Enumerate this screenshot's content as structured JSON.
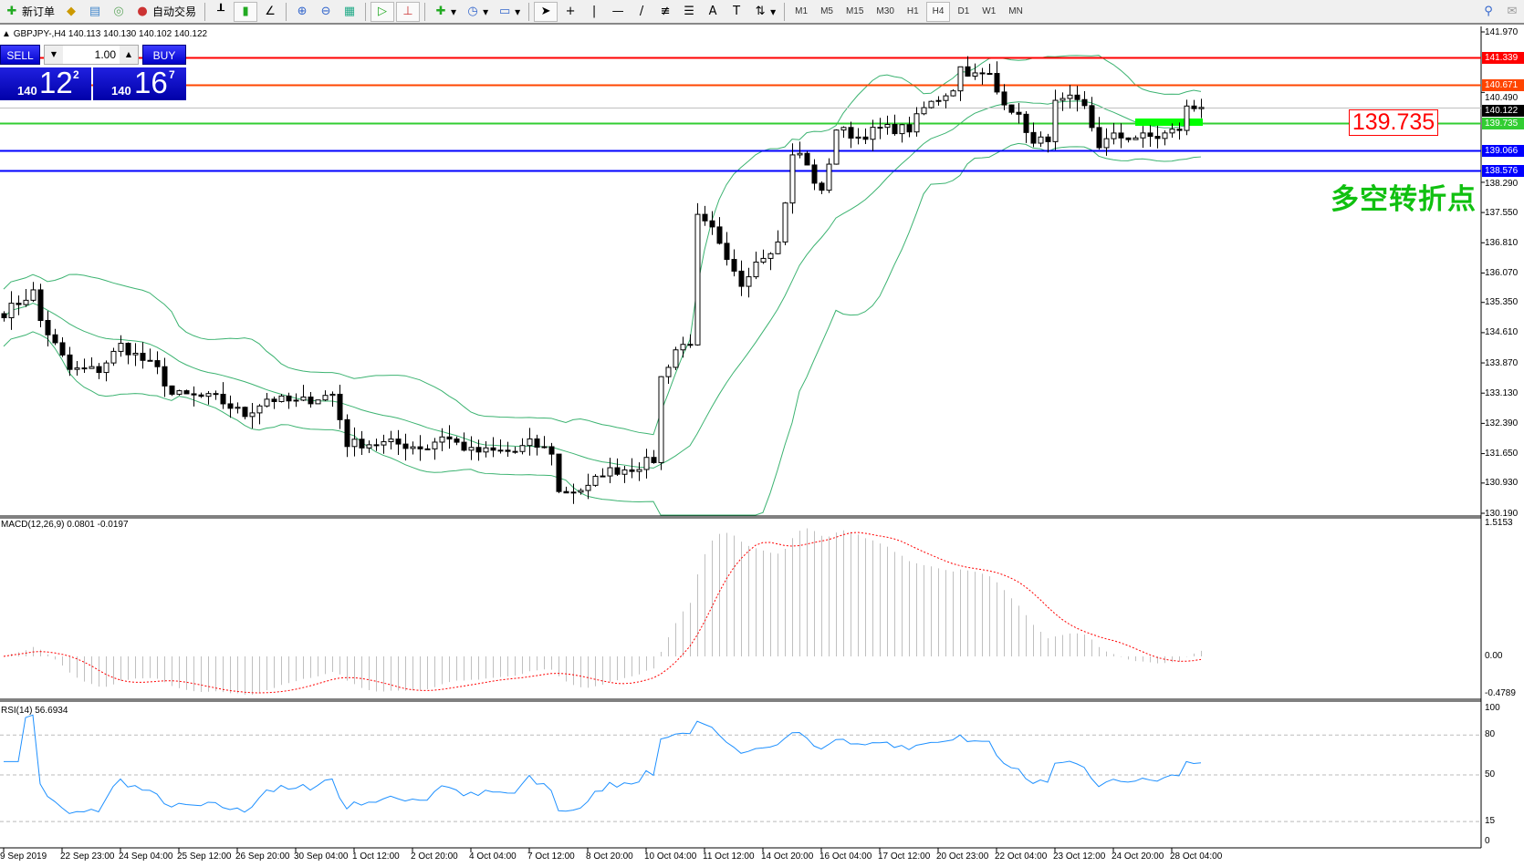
{
  "toolbar": {
    "new_order": "新订单",
    "auto_trading": "自动交易",
    "timeframes": [
      "M1",
      "M5",
      "M15",
      "M30",
      "H1",
      "H4",
      "D1",
      "W1",
      "MN"
    ],
    "active_timeframe": "H4"
  },
  "chart": {
    "header": "GBPJPY-,H4  140.113 140.130 140.102 140.122",
    "symbol": "GBPJPY-",
    "timeframe": "H4",
    "ohlc": {
      "open": 140.113,
      "high": 140.13,
      "low": 140.102,
      "close": 140.122
    }
  },
  "one_click": {
    "sell_label": "SELL",
    "buy_label": "BUY",
    "lot": "1.00",
    "sell_prefix": "140",
    "sell_big": "12",
    "sell_pip": "2",
    "buy_prefix": "140",
    "buy_big": "16",
    "buy_pip": "7"
  },
  "price_axis": [
    "141.970",
    "140.490",
    "138.290",
    "137.550",
    "136.810",
    "136.070",
    "135.350",
    "134.610",
    "133.870",
    "133.130",
    "132.390",
    "131.650",
    "130.930",
    "130.190"
  ],
  "price_axis_range": [
    130.19,
    141.97
  ],
  "levels": [
    {
      "price": "141.339",
      "color": "#ff0000"
    },
    {
      "price": "140.671",
      "color": "#ff4500"
    },
    {
      "price": "140.122",
      "color": "#000000",
      "current": true
    },
    {
      "price": "139.735",
      "color": "#32cd32"
    },
    {
      "price": "139.066",
      "color": "#0000ff"
    },
    {
      "price": "138.576",
      "color": "#0000ff"
    }
  ],
  "annotation_price": "139.735",
  "annotation_text": "多空转折点",
  "macd": {
    "label": "MACD(12,26,9) 0.0801 -0.0197",
    "axis": [
      "1.5153",
      "0.00",
      "-0.4789"
    ],
    "range": [
      -0.4789,
      1.5153
    ]
  },
  "rsi": {
    "label": "RSI(14) 56.6934",
    "axis": [
      "100",
      "80",
      "50",
      "15",
      "0"
    ],
    "levels": [
      80,
      50,
      15
    ]
  },
  "time_axis": [
    "9 Sep 2019",
    "22 Sep 23:00",
    "24 Sep 04:00",
    "25 Sep 12:00",
    "26 Sep 20:00",
    "30 Sep 04:00",
    "1 Oct 12:00",
    "2 Oct 20:00",
    "4 Oct 04:00",
    "7 Oct 12:00",
    "8 Oct 20:00",
    "10 Oct 04:00",
    "11 Oct 12:00",
    "14 Oct 20:00",
    "16 Oct 04:00",
    "17 Oct 12:00",
    "20 Oct 23:00",
    "22 Oct 04:00",
    "23 Oct 12:00",
    "24 Oct 20:00",
    "28 Oct 04:00"
  ],
  "chart_data": {
    "type": "candlestick",
    "close_path": [
      [
        0,
        135.1
      ],
      [
        4,
        135.6
      ],
      [
        5,
        134.9
      ],
      [
        9,
        133.7
      ],
      [
        13,
        133.7
      ],
      [
        16,
        134.3
      ],
      [
        21,
        133.7
      ],
      [
        23,
        133.1
      ],
      [
        29,
        133.0
      ],
      [
        33,
        132.6
      ],
      [
        36,
        133.0
      ],
      [
        40,
        132.9
      ],
      [
        45,
        133.1
      ],
      [
        47,
        131.9
      ],
      [
        53,
        131.9
      ],
      [
        58,
        131.8
      ],
      [
        60,
        132.1
      ],
      [
        64,
        131.7
      ],
      [
        70,
        131.7
      ],
      [
        72,
        131.9
      ],
      [
        75,
        131.7
      ],
      [
        76,
        130.7
      ],
      [
        80,
        130.8
      ],
      [
        82,
        131.2
      ],
      [
        86,
        131.3
      ],
      [
        89,
        131.5
      ],
      [
        90,
        133.5
      ],
      [
        92,
        134.2
      ],
      [
        94,
        134.4
      ],
      [
        95,
        137.4
      ],
      [
        97,
        137.1
      ],
      [
        99,
        136.3
      ],
      [
        101,
        135.8
      ],
      [
        103,
        136.4
      ],
      [
        106,
        136.8
      ],
      [
        108,
        138.9
      ],
      [
        109,
        139.0
      ],
      [
        112,
        138.0
      ],
      [
        114,
        139.6
      ],
      [
        117,
        139.4
      ],
      [
        120,
        139.6
      ],
      [
        124,
        139.6
      ],
      [
        126,
        140.1
      ],
      [
        130,
        140.6
      ],
      [
        131,
        141.1
      ],
      [
        133,
        140.9
      ],
      [
        135,
        140.9
      ],
      [
        136,
        140.5
      ],
      [
        138,
        140.1
      ],
      [
        140,
        139.6
      ],
      [
        141,
        139.2
      ],
      [
        143,
        139.4
      ],
      [
        144,
        140.2
      ],
      [
        146,
        140.3
      ],
      [
        148,
        140.1
      ],
      [
        150,
        139.2
      ],
      [
        152,
        139.4
      ],
      [
        156,
        139.4
      ],
      [
        158,
        139.4
      ],
      [
        161,
        139.6
      ],
      [
        162,
        140.1
      ],
      [
        164,
        140.122
      ]
    ],
    "indicators": [
      "Bollinger Bands(20,2)",
      "MACD(12,26,9)",
      "RSI(14)"
    ]
  },
  "colors": {
    "bands": "#3cb371",
    "macd_hist": "#c0c0c0",
    "macd_signal": "#ff0000",
    "rsi": "#1e90ff",
    "annotation": "#10c010"
  }
}
